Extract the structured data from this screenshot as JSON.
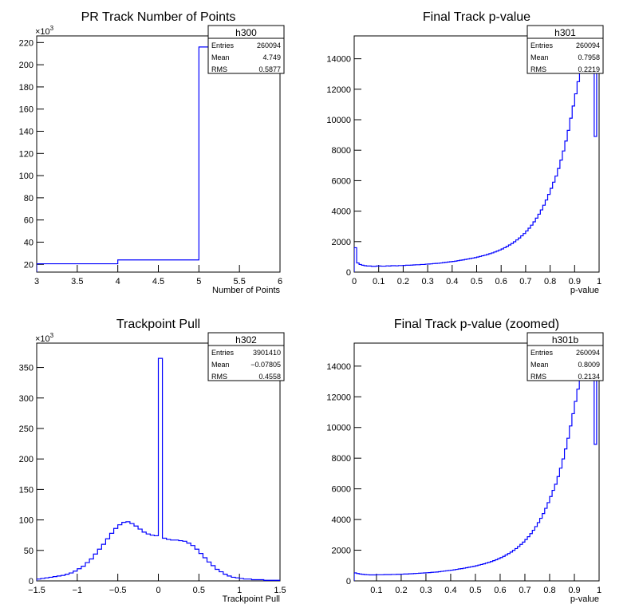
{
  "chart_data": [
    {
      "type": "step",
      "title": "PR Track Number of Points",
      "xlabel": "Number of Points",
      "ylabel": "",
      "y_exponent": "3",
      "xlim": [
        3,
        6
      ],
      "ylim": [
        13,
        226
      ],
      "x_ticks": [
        3,
        3.5,
        4,
        4.5,
        5,
        5.5,
        6
      ],
      "x_tick_labels": [
        "3",
        "3.5",
        "4",
        "4.5",
        "5",
        "5.5",
        "6"
      ],
      "y_ticks": [
        20,
        40,
        60,
        80,
        100,
        120,
        140,
        160,
        180,
        200,
        220
      ],
      "y_tick_labels": [
        "20",
        "40",
        "60",
        "80",
        "100",
        "120",
        "140",
        "160",
        "180",
        "200",
        "220"
      ],
      "bin_edges": [
        3,
        4,
        5,
        6
      ],
      "values": [
        20.5,
        24,
        216
      ],
      "line_color": "#0000ff",
      "stats": {
        "name": "h300",
        "rows": [
          {
            "label": "Entries",
            "value": "260094"
          },
          {
            "label": "Mean",
            "value": "4.749"
          },
          {
            "label": "RMS",
            "value": "0.5877"
          }
        ]
      }
    },
    {
      "type": "step",
      "title": "Final Track p-value",
      "xlabel": "p-value",
      "ylabel": "",
      "xlim": [
        0,
        1
      ],
      "ylim": [
        0,
        15500
      ],
      "x_ticks": [
        0,
        0.1,
        0.2,
        0.3,
        0.4,
        0.5,
        0.6,
        0.7,
        0.8,
        0.9,
        1
      ],
      "x_tick_labels": [
        "0",
        "0.1",
        "0.2",
        "0.3",
        "0.4",
        "0.5",
        "0.6",
        "0.7",
        "0.8",
        "0.9",
        "1"
      ],
      "y_ticks": [
        0,
        2000,
        4000,
        6000,
        8000,
        10000,
        12000,
        14000
      ],
      "y_tick_labels": [
        "0",
        "2000",
        "4000",
        "6000",
        "8000",
        "10000",
        "12000",
        "14000"
      ],
      "bin_edges": [
        0,
        0.01,
        0.02,
        0.03,
        0.04,
        0.05,
        0.06,
        0.07,
        0.08,
        0.09,
        0.1,
        0.11,
        0.12,
        0.13,
        0.14,
        0.15,
        0.16,
        0.17,
        0.18,
        0.19,
        0.2,
        0.21,
        0.22,
        0.23,
        0.24,
        0.25,
        0.26,
        0.27,
        0.28,
        0.29,
        0.3,
        0.31,
        0.32,
        0.33,
        0.34,
        0.35,
        0.36,
        0.37,
        0.38,
        0.39,
        0.4,
        0.41,
        0.42,
        0.43,
        0.44,
        0.45,
        0.46,
        0.47,
        0.48,
        0.49,
        0.5,
        0.51,
        0.52,
        0.53,
        0.54,
        0.55,
        0.56,
        0.57,
        0.58,
        0.59,
        0.6,
        0.61,
        0.62,
        0.63,
        0.64,
        0.65,
        0.66,
        0.67,
        0.68,
        0.69,
        0.7,
        0.71,
        0.72,
        0.73,
        0.74,
        0.75,
        0.76,
        0.77,
        0.78,
        0.79,
        0.8,
        0.81,
        0.82,
        0.83,
        0.84,
        0.85,
        0.86,
        0.87,
        0.88,
        0.89,
        0.9,
        0.91,
        0.92,
        0.93,
        0.94,
        0.95,
        0.96,
        0.97,
        0.98,
        0.99,
        1.0
      ],
      "values": [
        1600,
        600,
        500,
        450,
        420,
        400,
        400,
        380,
        380,
        400,
        400,
        390,
        390,
        410,
        400,
        420,
        420,
        410,
        430,
        430,
        440,
        450,
        450,
        460,
        470,
        480,
        480,
        500,
        500,
        520,
        530,
        540,
        560,
        570,
        580,
        600,
        620,
        640,
        660,
        680,
        700,
        720,
        750,
        780,
        800,
        830,
        860,
        890,
        920,
        950,
        990,
        1030,
        1070,
        1110,
        1160,
        1210,
        1260,
        1320,
        1380,
        1450,
        1520,
        1600,
        1690,
        1780,
        1880,
        1990,
        2110,
        2240,
        2380,
        2530,
        2700,
        2880,
        3080,
        3300,
        3540,
        3800,
        4080,
        4390,
        4730,
        5100,
        5500,
        5900,
        6300,
        6800,
        7350,
        7950,
        8600,
        9300,
        10100,
        10900,
        11700,
        12500,
        13300,
        14100,
        14900,
        15300,
        15500,
        15500,
        8900,
        15500
      ],
      "line_color": "#0000ff",
      "stats": {
        "name": "h301",
        "rows": [
          {
            "label": "Entries",
            "value": "260094"
          },
          {
            "label": "Mean",
            "value": "0.7958"
          },
          {
            "label": "RMS",
            "value": "0.2219"
          }
        ]
      }
    },
    {
      "type": "step",
      "title": "Trackpoint Pull",
      "xlabel": "Trackpoint Pull",
      "ylabel": "",
      "y_exponent": "3",
      "xlim": [
        -1.5,
        1.5
      ],
      "ylim": [
        0,
        390
      ],
      "x_ticks": [
        -1.5,
        -1,
        -0.5,
        0,
        0.5,
        1,
        1.5
      ],
      "x_tick_labels": [
        "−1.5",
        "−1",
        "−0.5",
        "0",
        "0.5",
        "1",
        "1.5"
      ],
      "y_ticks": [
        0,
        50,
        100,
        150,
        200,
        250,
        300,
        350
      ],
      "y_tick_labels": [
        "0",
        "50",
        "100",
        "150",
        "200",
        "250",
        "300",
        "350"
      ],
      "bin_edges": [
        -1.5,
        -1.45,
        -1.4,
        -1.35,
        -1.3,
        -1.25,
        -1.2,
        -1.15,
        -1.1,
        -1.05,
        -1.0,
        -0.95,
        -0.9,
        -0.85,
        -0.8,
        -0.75,
        -0.7,
        -0.65,
        -0.6,
        -0.55,
        -0.5,
        -0.45,
        -0.4,
        -0.35,
        -0.3,
        -0.25,
        -0.2,
        -0.15,
        -0.1,
        -0.05,
        0.0,
        0.05,
        0.1,
        0.15,
        0.2,
        0.25,
        0.3,
        0.35,
        0.4,
        0.45,
        0.5,
        0.55,
        0.6,
        0.65,
        0.7,
        0.75,
        0.8,
        0.85,
        0.9,
        0.95,
        1.0,
        1.05,
        1.1,
        1.15,
        1.2,
        1.25,
        1.3,
        1.35,
        1.4,
        1.45,
        1.5
      ],
      "values": [
        3,
        4,
        5,
        6,
        7,
        8,
        9,
        11,
        13,
        16,
        20,
        24,
        30,
        36,
        44,
        52,
        60,
        69,
        78,
        86,
        92,
        96,
        97,
        94,
        90,
        85,
        80,
        77,
        75,
        74,
        365,
        70,
        68,
        67,
        67,
        66,
        65,
        62,
        58,
        52,
        45,
        38,
        31,
        25,
        19,
        15,
        11,
        8,
        6,
        5,
        4,
        3,
        3,
        2,
        2,
        2,
        1,
        1,
        1,
        1
      ],
      "line_color": "#0000ff",
      "stats": {
        "name": "h302",
        "rows": [
          {
            "label": "Entries",
            "value": "3901410"
          },
          {
            "label": "Mean",
            "value": "−0.07805"
          },
          {
            "label": "RMS",
            "value": "0.4558"
          }
        ]
      }
    },
    {
      "type": "step",
      "title": "Final Track p-value (zoomed)",
      "xlabel": "p-value",
      "ylabel": "",
      "xlim": [
        0.01,
        1
      ],
      "ylim": [
        0,
        15500
      ],
      "x_ticks": [
        0.1,
        0.2,
        0.3,
        0.4,
        0.5,
        0.6,
        0.7,
        0.8,
        0.9,
        1
      ],
      "x_tick_labels": [
        "0.1",
        "0.2",
        "0.3",
        "0.4",
        "0.5",
        "0.6",
        "0.7",
        "0.8",
        "0.9",
        "1"
      ],
      "y_ticks": [
        0,
        2000,
        4000,
        6000,
        8000,
        10000,
        12000,
        14000
      ],
      "y_tick_labels": [
        "0",
        "2000",
        "4000",
        "6000",
        "8000",
        "10000",
        "12000",
        "14000"
      ],
      "bin_edges": [
        0.01,
        0.02,
        0.03,
        0.04,
        0.05,
        0.06,
        0.07,
        0.08,
        0.09,
        0.1,
        0.11,
        0.12,
        0.13,
        0.14,
        0.15,
        0.16,
        0.17,
        0.18,
        0.19,
        0.2,
        0.21,
        0.22,
        0.23,
        0.24,
        0.25,
        0.26,
        0.27,
        0.28,
        0.29,
        0.3,
        0.31,
        0.32,
        0.33,
        0.34,
        0.35,
        0.36,
        0.37,
        0.38,
        0.39,
        0.4,
        0.41,
        0.42,
        0.43,
        0.44,
        0.45,
        0.46,
        0.47,
        0.48,
        0.49,
        0.5,
        0.51,
        0.52,
        0.53,
        0.54,
        0.55,
        0.56,
        0.57,
        0.58,
        0.59,
        0.6,
        0.61,
        0.62,
        0.63,
        0.64,
        0.65,
        0.66,
        0.67,
        0.68,
        0.69,
        0.7,
        0.71,
        0.72,
        0.73,
        0.74,
        0.75,
        0.76,
        0.77,
        0.78,
        0.79,
        0.8,
        0.81,
        0.82,
        0.83,
        0.84,
        0.85,
        0.86,
        0.87,
        0.88,
        0.89,
        0.9,
        0.91,
        0.92,
        0.93,
        0.94,
        0.95,
        0.96,
        0.97,
        0.98,
        0.99,
        1.0
      ],
      "values": [
        520,
        480,
        450,
        430,
        410,
        400,
        390,
        390,
        390,
        400,
        400,
        400,
        410,
        410,
        410,
        420,
        420,
        430,
        430,
        440,
        450,
        450,
        460,
        470,
        480,
        490,
        500,
        510,
        520,
        530,
        540,
        560,
        570,
        580,
        600,
        620,
        640,
        660,
        680,
        700,
        720,
        750,
        780,
        800,
        830,
        860,
        890,
        920,
        950,
        990,
        1030,
        1070,
        1110,
        1160,
        1210,
        1260,
        1320,
        1380,
        1450,
        1520,
        1600,
        1690,
        1780,
        1880,
        1990,
        2110,
        2240,
        2380,
        2530,
        2700,
        2880,
        3080,
        3300,
        3540,
        3800,
        4080,
        4390,
        4730,
        5100,
        5500,
        5900,
        6300,
        6800,
        7350,
        7950,
        8600,
        9300,
        10100,
        10900,
        11700,
        12500,
        13300,
        14100,
        14900,
        15300,
        15500,
        15500,
        8900,
        15500
      ],
      "line_color": "#0000ff",
      "stats": {
        "name": "h301b",
        "rows": [
          {
            "label": "Entries",
            "value": "260094"
          },
          {
            "label": "Mean",
            "value": "0.8009"
          },
          {
            "label": "RMS",
            "value": "0.2134"
          }
        ]
      }
    }
  ]
}
